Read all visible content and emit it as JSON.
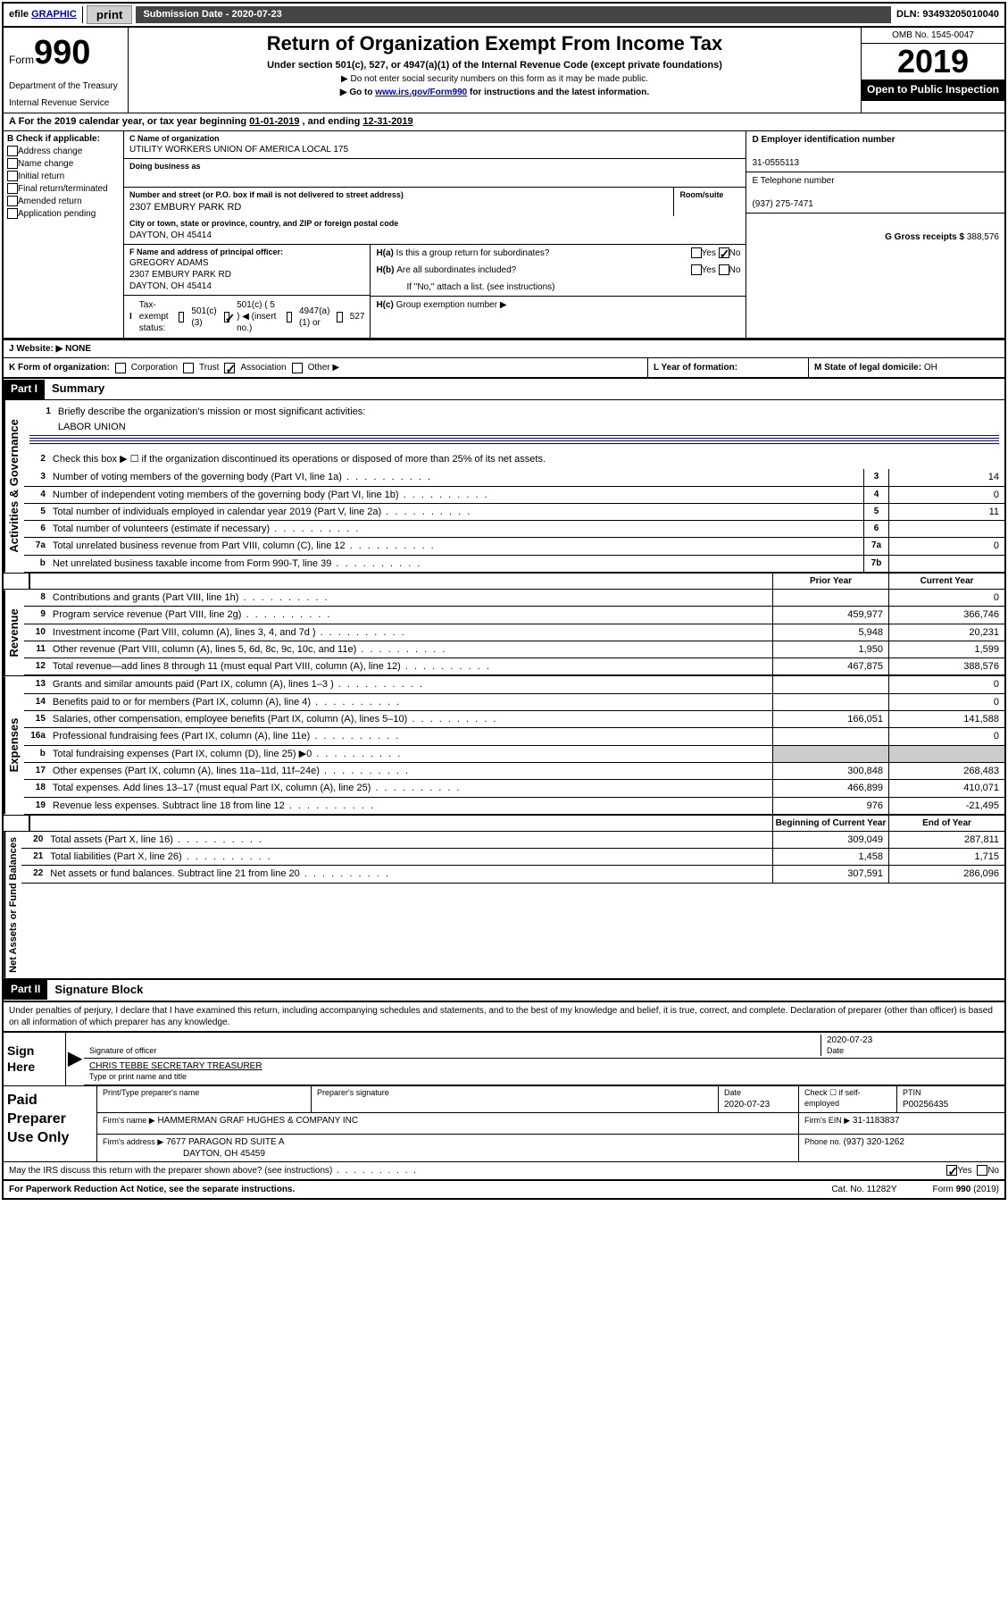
{
  "top": {
    "efile": "efile",
    "graphic": "GRAPHIC",
    "print": "print",
    "submission_label": "Submission Date - ",
    "submission_date": "2020-07-23",
    "dln_label": "DLN: ",
    "dln": "93493205010040"
  },
  "header": {
    "form_prefix": "Form",
    "form_number": "990",
    "dept1": "Department of the Treasury",
    "dept2": "Internal Revenue Service",
    "title": "Return of Organization Exempt From Income Tax",
    "subtitle": "Under section 501(c), 527, or 4947(a)(1) of the Internal Revenue Code (except private foundations)",
    "note1": "▶ Do not enter social security numbers on this form as it may be made public.",
    "note2_pre": "▶ Go to ",
    "note2_link": "www.irs.gov/Form990",
    "note2_post": " for instructions and the latest information.",
    "omb": "OMB No. 1545-0047",
    "year": "2019",
    "open": "Open to Public Inspection"
  },
  "period": {
    "a_label": "A",
    "text_pre": "For the 2019 calendar year, or tax year beginning ",
    "begin": "01-01-2019",
    "mid": "  , and ending ",
    "end": "12-31-2019"
  },
  "b": {
    "label": "B Check if applicable:",
    "opts": [
      "Address change",
      "Name change",
      "Initial return",
      "Final return/terminated",
      "Amended return",
      "Application pending"
    ]
  },
  "c": {
    "name_label": "C Name of organization",
    "name": "UTILITY WORKERS UNION OF AMERICA LOCAL 175",
    "dba_label": "Doing business as",
    "dba": "",
    "street_label": "Number and street (or P.O. box if mail is not delivered to street address)",
    "street": "2307 EMBURY PARK RD",
    "room_label": "Room/suite",
    "city_label": "City or town, state or province, country, and ZIP or foreign postal code",
    "city": "DAYTON, OH  45414"
  },
  "d": {
    "ein_label": "D Employer identification number",
    "ein": "31-0555113",
    "tel_label": "E Telephone number",
    "tel": "(937) 275-7471",
    "gross_label": "G Gross receipts $ ",
    "gross": "388,576"
  },
  "f": {
    "label": "F  Name and address of principal officer:",
    "name": "GREGORY ADAMS",
    "addr1": "2307 EMBURY PARK RD",
    "addr2": "DAYTON, OH  45414"
  },
  "h": {
    "a_label": "H(a)",
    "a_text": "Is this a group return for subordinates?",
    "b_label": "H(b)",
    "b_text": "Are all subordinates included?",
    "b_note": "If \"No,\" attach a list. (see instructions)",
    "c_label": "H(c)",
    "c_text": "Group exemption number ▶",
    "yes": "Yes",
    "no": "No"
  },
  "status": {
    "i_label": "I",
    "text": "Tax-exempt status:",
    "opt1": "501(c)(3)",
    "opt2_pre": "501(c) ( ",
    "opt2_num": "5",
    "opt2_post": " ) ◀ (insert no.)",
    "opt3": "4947(a)(1) or",
    "opt4": "527"
  },
  "website": {
    "j_label": "J",
    "label": "Website: ▶",
    "value": "NONE"
  },
  "k": {
    "label": "K Form of organization:",
    "corp": "Corporation",
    "trust": "Trust",
    "assoc": "Association",
    "other": "Other ▶",
    "l_label": "L Year of formation:",
    "l_val": "",
    "m_label": "M State of legal domicile: ",
    "m_val": "OH"
  },
  "part1": {
    "header": "Part I",
    "title": "Summary",
    "vert1": "Activities & Governance",
    "vert2": "Revenue",
    "vert3": "Expenses",
    "vert4": "Net Assets or Fund Balances",
    "l1_label": "1",
    "l1_text": "Briefly describe the organization's mission or most significant activities:",
    "l1_val": "LABOR UNION",
    "l2_label": "2",
    "l2_text": "Check this box ▶ ☐  if the organization discontinued its operations or disposed of more than 25% of its net assets.",
    "prior_header": "Prior Year",
    "current_header": "Current Year",
    "boyr_header": "Beginning of Current Year",
    "eoyr_header": "End of Year",
    "rows_gov": [
      {
        "n": "3",
        "t": "Number of voting members of the governing body (Part VI, line 1a)",
        "box": "3",
        "v": "14"
      },
      {
        "n": "4",
        "t": "Number of independent voting members of the governing body (Part VI, line 1b)",
        "box": "4",
        "v": "0"
      },
      {
        "n": "5",
        "t": "Total number of individuals employed in calendar year 2019 (Part V, line 2a)",
        "box": "5",
        "v": "11"
      },
      {
        "n": "6",
        "t": "Total number of volunteers (estimate if necessary)",
        "box": "6",
        "v": ""
      },
      {
        "n": "7a",
        "t": "Total unrelated business revenue from Part VIII, column (C), line 12",
        "box": "7a",
        "v": "0"
      },
      {
        "n": "b",
        "t": "Net unrelated business taxable income from Form 990-T, line 39",
        "box": "7b",
        "v": ""
      }
    ],
    "rows_rev": [
      {
        "n": "8",
        "t": "Contributions and grants (Part VIII, line 1h)",
        "p": "",
        "c": "0"
      },
      {
        "n": "9",
        "t": "Program service revenue (Part VIII, line 2g)",
        "p": "459,977",
        "c": "366,746"
      },
      {
        "n": "10",
        "t": "Investment income (Part VIII, column (A), lines 3, 4, and 7d )",
        "p": "5,948",
        "c": "20,231"
      },
      {
        "n": "11",
        "t": "Other revenue (Part VIII, column (A), lines 5, 6d, 8c, 9c, 10c, and 11e)",
        "p": "1,950",
        "c": "1,599"
      },
      {
        "n": "12",
        "t": "Total revenue—add lines 8 through 11 (must equal Part VIII, column (A), line 12)",
        "p": "467,875",
        "c": "388,576"
      }
    ],
    "rows_exp": [
      {
        "n": "13",
        "t": "Grants and similar amounts paid (Part IX, column (A), lines 1–3 )",
        "p": "",
        "c": "0"
      },
      {
        "n": "14",
        "t": "Benefits paid to or for members (Part IX, column (A), line 4)",
        "p": "",
        "c": "0"
      },
      {
        "n": "15",
        "t": "Salaries, other compensation, employee benefits (Part IX, column (A), lines 5–10)",
        "p": "166,051",
        "c": "141,588"
      },
      {
        "n": "16a",
        "t": "Professional fundraising fees (Part IX, column (A), line 11e)",
        "p": "",
        "c": "0"
      },
      {
        "n": "b",
        "t": "Total fundraising expenses (Part IX, column (D), line 25) ▶0",
        "p": "gray",
        "c": "gray"
      },
      {
        "n": "17",
        "t": "Other expenses (Part IX, column (A), lines 11a–11d, 11f–24e)",
        "p": "300,848",
        "c": "268,483"
      },
      {
        "n": "18",
        "t": "Total expenses. Add lines 13–17 (must equal Part IX, column (A), line 25)",
        "p": "466,899",
        "c": "410,071"
      },
      {
        "n": "19",
        "t": "Revenue less expenses. Subtract line 18 from line 12",
        "p": "976",
        "c": "-21,495"
      }
    ],
    "rows_net": [
      {
        "n": "20",
        "t": "Total assets (Part X, line 16)",
        "p": "309,049",
        "c": "287,811"
      },
      {
        "n": "21",
        "t": "Total liabilities (Part X, line 26)",
        "p": "1,458",
        "c": "1,715"
      },
      {
        "n": "22",
        "t": "Net assets or fund balances. Subtract line 21 from line 20",
        "p": "307,591",
        "c": "286,096"
      }
    ]
  },
  "part2": {
    "header": "Part II",
    "title": "Signature Block",
    "perjury": "Under penalties of perjury, I declare that I have examined this return, including accompanying schedules and statements, and to the best of my knowledge and belief, it is true, correct, and complete. Declaration of preparer (other than officer) is based on all information of which preparer has any knowledge.",
    "sign_here": "Sign Here",
    "sig_officer": "Signature of officer",
    "date_label": "Date",
    "sig_date": "2020-07-23",
    "officer_name": "CHRIS TEBBE SECRETARY TREASURER",
    "type_name": "Type or print name and title",
    "paid_prep": "Paid Preparer Use Only",
    "prep_name_label": "Print/Type preparer's name",
    "prep_name": "",
    "prep_sig_label": "Preparer's signature",
    "prep_date_label": "Date",
    "prep_date": "2020-07-23",
    "check_if": "Check ☐ if self-employed",
    "ptin_label": "PTIN",
    "ptin": "P00256435",
    "firm_name_label": "Firm's name     ▶",
    "firm_name": "HAMMERMAN GRAF HUGHES & COMPANY INC",
    "firm_ein_label": "Firm's EIN ▶",
    "firm_ein": "31-1183837",
    "firm_addr_label": "Firm's address ▶",
    "firm_addr1": "7677 PARAGON RD SUITE A",
    "firm_addr2": "DAYTON, OH  45459",
    "phone_label": "Phone no. ",
    "phone": "(937) 320-1262",
    "discuss": "May the IRS discuss this return with the preparer shown above? (see instructions)",
    "yes": "Yes",
    "no": "No"
  },
  "footer": {
    "paperwork": "For Paperwork Reduction Act Notice, see the separate instructions.",
    "cat": "Cat. No. 11282Y",
    "form": "Form 990 (2019)"
  }
}
